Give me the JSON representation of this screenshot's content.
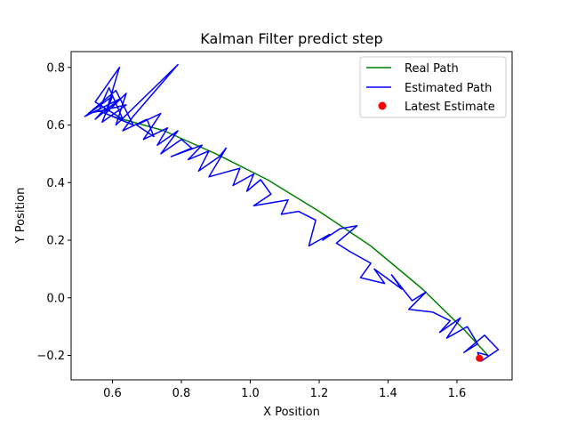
{
  "chart_data": {
    "type": "line",
    "title": "Kalman Filter predict step",
    "xlabel": "X Position",
    "ylabel": "Y Position",
    "xlim": [
      0.48,
      1.76
    ],
    "ylim": [
      -0.285,
      0.855
    ],
    "xticks": [
      0.6,
      0.8,
      1.0,
      1.2,
      1.4,
      1.6
    ],
    "xtick_labels": [
      "0.6",
      "0.8",
      "1.0",
      "1.2",
      "1.4",
      "1.6"
    ],
    "yticks": [
      -0.2,
      0.0,
      0.2,
      0.4,
      0.6,
      0.8
    ],
    "ytick_labels": [
      "−0.2",
      "0.0",
      "0.2",
      "0.4",
      "0.6",
      "0.8"
    ],
    "grid": false,
    "legend_position": "top-right",
    "series": [
      {
        "name": "Real Path",
        "color": "#008000",
        "style": "line",
        "x": [
          0.6,
          0.75,
          0.9,
          1.05,
          1.2,
          1.35,
          1.5,
          1.62,
          1.69
        ],
        "y": [
          0.63,
          0.58,
          0.5,
          0.41,
          0.3,
          0.18,
          0.03,
          -0.11,
          -0.2
        ]
      },
      {
        "name": "Estimated Path",
        "color": "#0000ff",
        "style": "line",
        "x": [
          0.58,
          0.55,
          0.62,
          0.52,
          0.6,
          0.57,
          0.64,
          0.53,
          0.61,
          0.66,
          0.56,
          0.59,
          0.63,
          0.55,
          0.62,
          0.58,
          0.64,
          0.61,
          0.79,
          0.66,
          0.63,
          0.7,
          0.72,
          0.67,
          0.74,
          0.69,
          0.76,
          0.73,
          0.79,
          0.74,
          0.8,
          0.83,
          0.77,
          0.86,
          0.82,
          0.88,
          0.85,
          0.91,
          0.93,
          0.88,
          0.97,
          0.95,
          1.01,
          0.99,
          1.03,
          1.06,
          1.01,
          1.11,
          1.09,
          1.14,
          1.19,
          1.17,
          1.23,
          1.21,
          1.26,
          1.31,
          1.25,
          1.29,
          1.35,
          1.32,
          1.39,
          1.36,
          1.44,
          1.41,
          1.47,
          1.51,
          1.46,
          1.53,
          1.58,
          1.55,
          1.61,
          1.57,
          1.63,
          1.66,
          1.62,
          1.68,
          1.72,
          1.67,
          1.66,
          1.69
        ],
        "y": [
          0.66,
          0.62,
          0.69,
          0.63,
          0.7,
          0.61,
          0.67,
          0.64,
          0.72,
          0.6,
          0.65,
          0.73,
          0.62,
          0.68,
          0.8,
          0.64,
          0.71,
          0.6,
          0.81,
          0.63,
          0.58,
          0.62,
          0.56,
          0.6,
          0.64,
          0.55,
          0.59,
          0.53,
          0.58,
          0.5,
          0.55,
          0.52,
          0.49,
          0.53,
          0.48,
          0.51,
          0.44,
          0.49,
          0.52,
          0.42,
          0.45,
          0.39,
          0.43,
          0.37,
          0.41,
          0.36,
          0.32,
          0.34,
          0.29,
          0.3,
          0.27,
          0.18,
          0.22,
          0.2,
          0.24,
          0.25,
          0.19,
          0.16,
          0.12,
          0.07,
          0.05,
          0.1,
          0.03,
          0.08,
          -0.01,
          0.02,
          -0.04,
          -0.05,
          -0.08,
          -0.12,
          -0.07,
          -0.14,
          -0.1,
          -0.16,
          -0.19,
          -0.13,
          -0.18,
          -0.22,
          -0.19,
          -0.2
        ]
      }
    ],
    "points": [
      {
        "name": "Latest Estimate",
        "color": "#ff0000",
        "x": 1.665,
        "y": -0.21
      }
    ]
  }
}
